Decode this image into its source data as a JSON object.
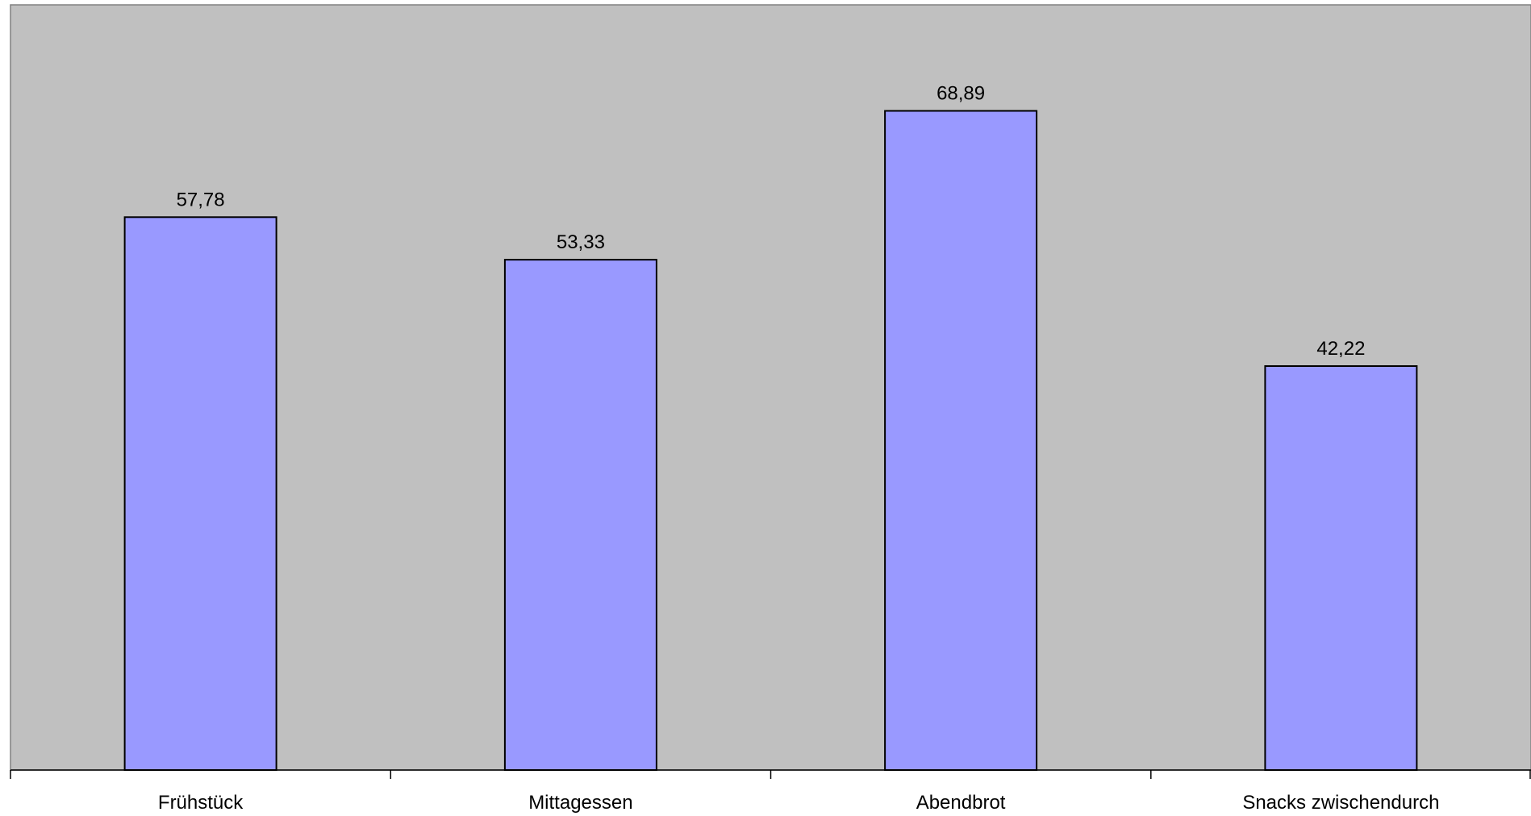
{
  "colors": {
    "plot_background": "#c0c0c0",
    "bar_fill": "#9999ff",
    "bar_stroke": "#000000"
  },
  "chart_data": {
    "type": "bar",
    "categories": [
      "Frühstück",
      "Mittagessen",
      "Abendbrot",
      "Snacks zwischendurch"
    ],
    "values": [
      57.78,
      53.33,
      68.89,
      42.22
    ],
    "data_labels": [
      "57,78",
      "53,33",
      "68,89",
      "42,22"
    ],
    "title": "",
    "xlabel": "",
    "ylabel": "",
    "ylim": [
      0,
      80
    ],
    "grid": false,
    "legend": "none"
  }
}
